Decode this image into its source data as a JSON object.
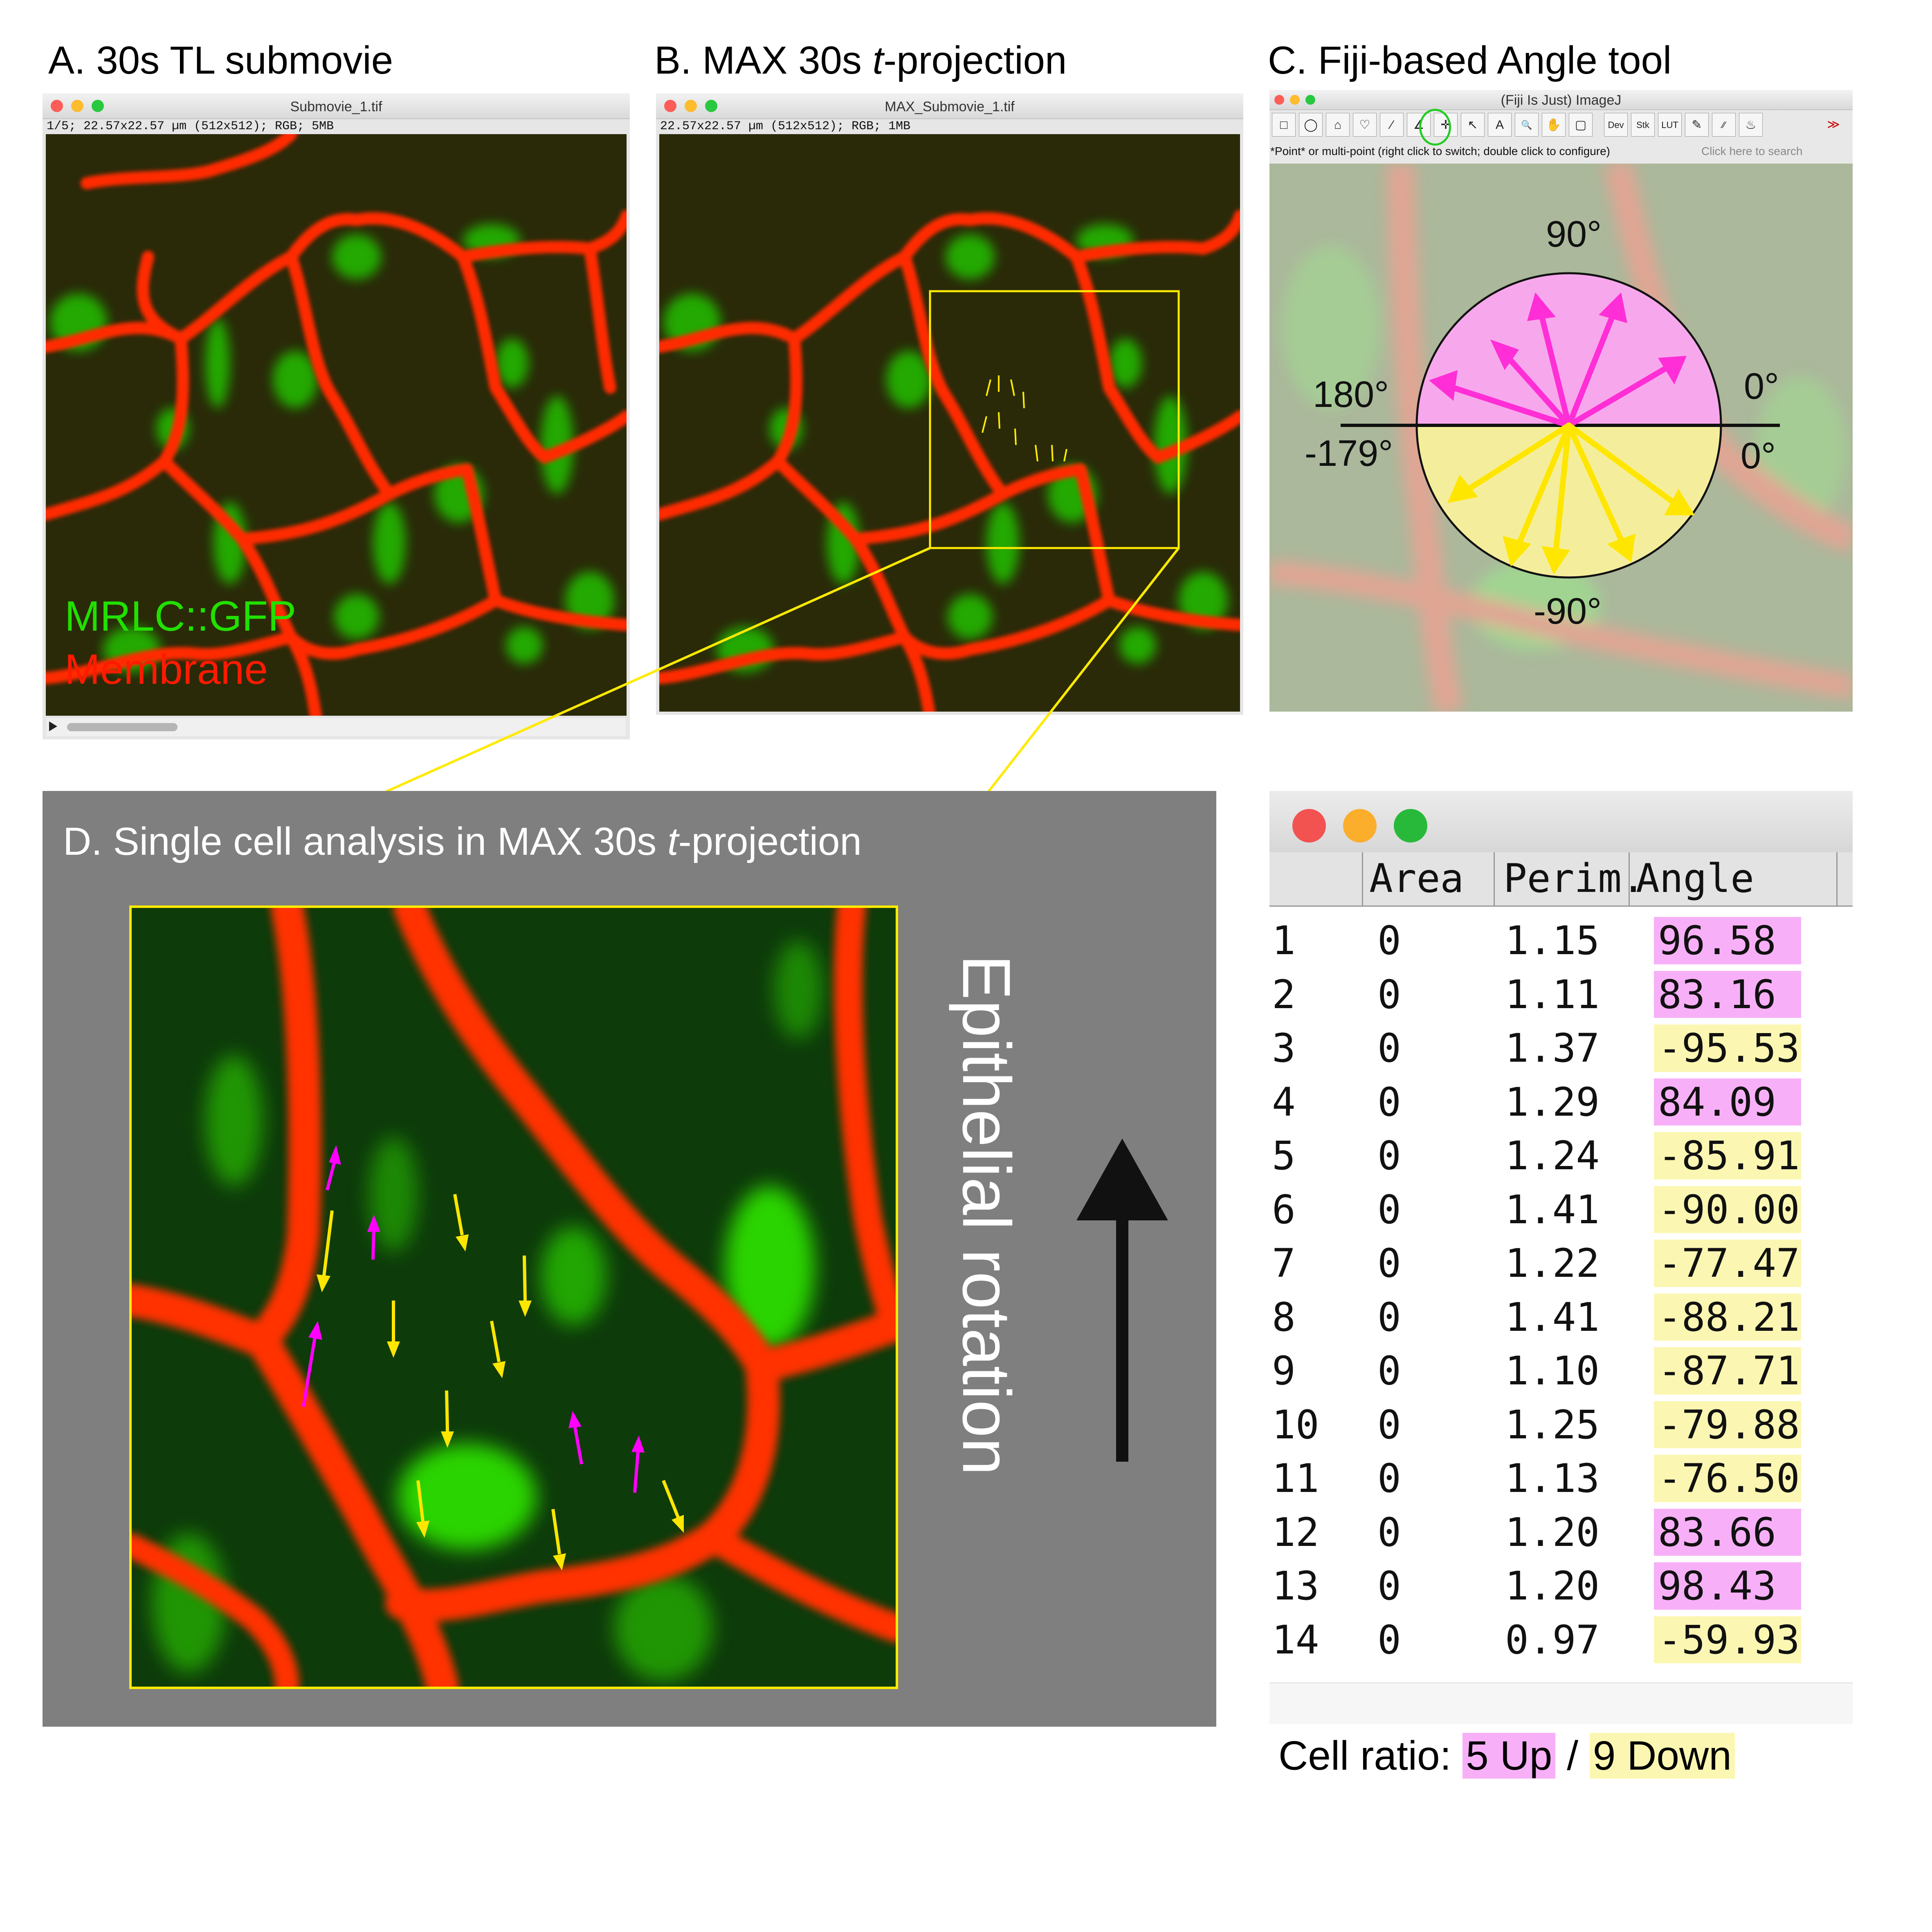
{
  "panels": {
    "a": {
      "title": "A. 30s TL submovie",
      "window_title": "Submovie_1.tif",
      "info": "1/5; 22.57x22.57 µm (512x512); RGB; 5MB",
      "legend_green": "MRLC::GFP",
      "legend_red": "Membrane"
    },
    "b": {
      "title_pre": "B. MAX 30s ",
      "title_t": "t",
      "title_post": "-projection",
      "window_title": "MAX_Submovie_1.tif",
      "info": "22.57x22.57 µm (512x512); RGB; 1MB"
    },
    "c": {
      "title": "C. Fiji-based Angle tool",
      "window_title": "(Fiji Is Just) ImageJ",
      "status": "*Point* or multi-point (right click to switch; double click to configure)",
      "search": "Click here to search",
      "tools": [
        "□",
        "◯",
        "⌂",
        "♡",
        "⁄",
        "∠",
        "✛",
        "↖",
        "A",
        "🔍",
        "✋",
        "▢",
        "Dev",
        "Stk",
        "LUT",
        "✎",
        "⁄⁄",
        "♨",
        "≫"
      ],
      "labels": {
        "deg90": "90°",
        "deg180": "180°",
        "deg0_top": "0°",
        "deg_neg179": "-179°",
        "deg0_bottom": "0°",
        "deg_neg90": "-90°"
      }
    },
    "d": {
      "title_pre": "D. Single cell analysis in MAX 30s ",
      "title_t": "t",
      "title_post": "-projection",
      "side_label": "Epithelial rotation"
    }
  },
  "results_table": {
    "headers": [
      "Area",
      "Perim.",
      "Angle"
    ],
    "rows": [
      {
        "n": "1",
        "area": "0",
        "perim": "1.15",
        "angle": "96.58",
        "dir": "up"
      },
      {
        "n": "2",
        "area": "0",
        "perim": "1.11",
        "angle": "83.16",
        "dir": "up"
      },
      {
        "n": "3",
        "area": "0",
        "perim": "1.37",
        "angle": "-95.53",
        "dir": "down"
      },
      {
        "n": "4",
        "area": "0",
        "perim": "1.29",
        "angle": "84.09",
        "dir": "up"
      },
      {
        "n": "5",
        "area": "0",
        "perim": "1.24",
        "angle": "-85.91",
        "dir": "down"
      },
      {
        "n": "6",
        "area": "0",
        "perim": "1.41",
        "angle": "-90.00",
        "dir": "down"
      },
      {
        "n": "7",
        "area": "0",
        "perim": "1.22",
        "angle": "-77.47",
        "dir": "down"
      },
      {
        "n": "8",
        "area": "0",
        "perim": "1.41",
        "angle": "-88.21",
        "dir": "down"
      },
      {
        "n": "9",
        "area": "0",
        "perim": "1.10",
        "angle": "-87.71",
        "dir": "down"
      },
      {
        "n": "10",
        "area": "0",
        "perim": "1.25",
        "angle": "-79.88",
        "dir": "down"
      },
      {
        "n": "11",
        "area": "0",
        "perim": "1.13",
        "angle": "-76.50",
        "dir": "down"
      },
      {
        "n": "12",
        "area": "0",
        "perim": "1.20",
        "angle": "83.66",
        "dir": "up"
      },
      {
        "n": "13",
        "area": "0",
        "perim": "1.20",
        "angle": "98.43",
        "dir": "up"
      },
      {
        "n": "14",
        "area": "0",
        "perim": "0.97",
        "angle": "-59.93",
        "dir": "down"
      }
    ],
    "ratio_label": "Cell ratio:",
    "ratio_up": "5 Up",
    "ratio_sep": "/",
    "ratio_down": "9 Down"
  },
  "colors": {
    "up": "#ff33ff",
    "up_bg": "#f7b0f7",
    "down": "#ffe600",
    "down_bg": "#fbf7b2",
    "membrane": "#ff2a00",
    "gfp": "#22e000",
    "panel_d_bg": "#7f7f7f",
    "roi": "#ffea00"
  }
}
